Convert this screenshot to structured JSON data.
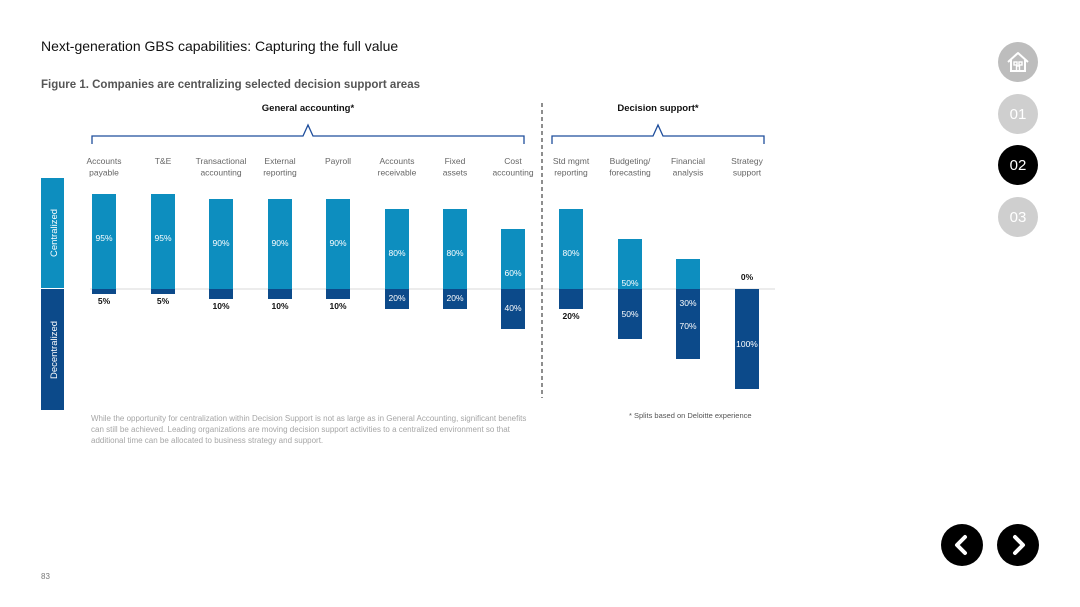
{
  "page": {
    "title": "Next-generation GBS capabilities: Capturing the full value",
    "figure_caption": "Figure 1. Companies are centralizing selected decision support areas",
    "note": "While the opportunity for centralization within Decision Support is not as large as in General Accounting, significant benefits can still be achieved. Leading organizations are moving decision support activities to a centralized environment so that additional time can be allocated to business strategy and support.",
    "footnote": "* Splits based on Deloitte experience",
    "page_number": "83"
  },
  "nav": {
    "home_icon": "home-icon",
    "sections": [
      "01",
      "02",
      "03"
    ],
    "active_section": "02",
    "prev_icon": "chevron-left-icon",
    "next_icon": "chevron-right-icon"
  },
  "colors": {
    "centralized": "#0d8ebf",
    "decentralized": "#0c4a8a",
    "bracket": "#1f4e9c",
    "nav_active": "#000000",
    "nav_inactive": "#cfcfcf"
  },
  "chart_data": {
    "type": "bar",
    "orientation": "diverging",
    "groups": [
      {
        "name": "General accounting*",
        "categories": [
          "Accounts payable",
          "T&E",
          "Transactional accounting",
          "External reporting",
          "Payroll",
          "Accounts receivable",
          "Fixed assets",
          "Cost accounting"
        ]
      },
      {
        "name": "Decision support*",
        "categories": [
          "Std mgmt reporting",
          "Budgeting/ forecasting",
          "Financial analysis",
          "Strategy support"
        ]
      }
    ],
    "categories": [
      [
        "Accounts",
        "payable"
      ],
      [
        "T&E"
      ],
      [
        "Transactional",
        "accounting"
      ],
      [
        "External",
        "reporting"
      ],
      [
        "Payroll"
      ],
      [
        "Accounts",
        "receivable"
      ],
      [
        "Fixed",
        "assets"
      ],
      [
        "Cost",
        "accounting"
      ],
      [
        "Std mgmt",
        "reporting"
      ],
      [
        "Budgeting/",
        "forecasting"
      ],
      [
        "Financial",
        "analysis"
      ],
      [
        "Strategy",
        "support"
      ]
    ],
    "series": [
      {
        "name": "Centralized",
        "values": [
          95,
          95,
          90,
          90,
          90,
          80,
          80,
          60,
          80,
          50,
          30,
          0
        ]
      },
      {
        "name": "Decentralized",
        "values": [
          5,
          5,
          10,
          10,
          10,
          20,
          20,
          40,
          20,
          50,
          70,
          100
        ]
      }
    ],
    "labels_centralized": [
      "95%",
      "95%",
      "90%",
      "90%",
      "90%",
      "80%",
      "80%",
      "60%",
      "80%",
      "50%",
      "30%",
      "0%"
    ],
    "labels_decentralized": [
      "5%",
      "5%",
      "10%",
      "10%",
      "10%",
      "20%",
      "20%",
      "40%",
      "20%",
      "50%",
      "70%",
      "100%"
    ],
    "ylim": [
      -100,
      100
    ],
    "legend_position": "left",
    "grid": false
  }
}
